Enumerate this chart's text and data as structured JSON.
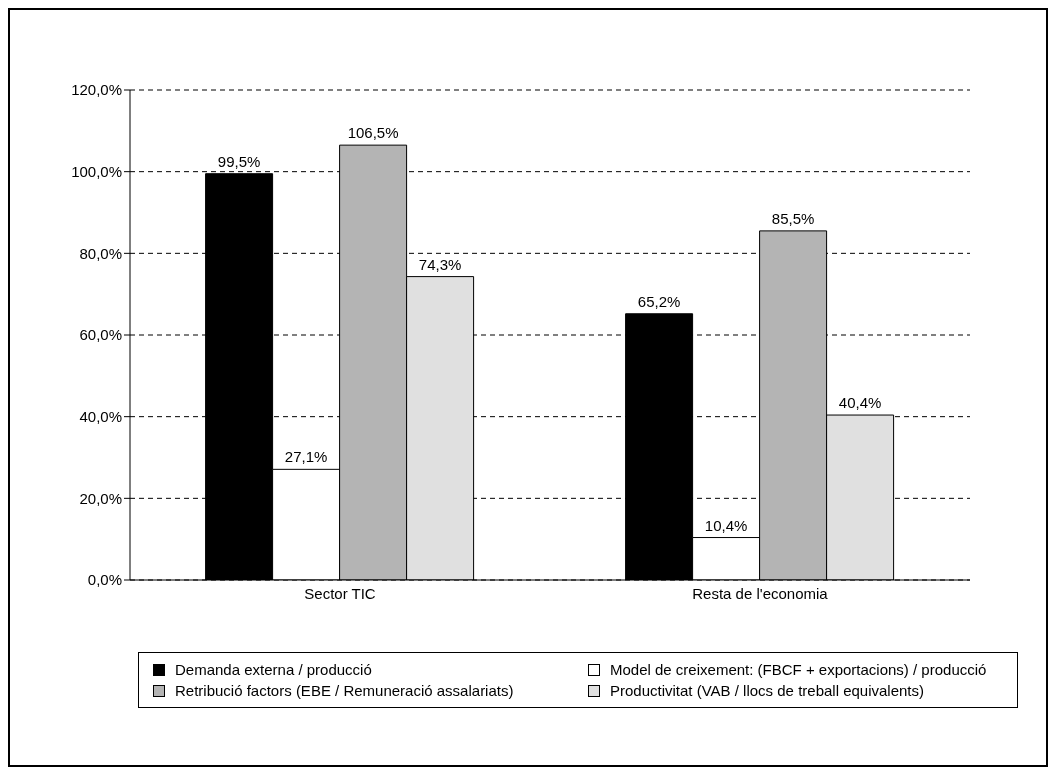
{
  "chart_data": {
    "type": "bar",
    "categories": [
      "Sector TIC",
      "Resta de l'economia"
    ],
    "series": [
      {
        "name": "Demanda externa / producció",
        "color": "#000000",
        "values": [
          99.5,
          65.2
        ],
        "value_labels": [
          "99,5%",
          "65,2%"
        ]
      },
      {
        "name": "Model de creixement: (FBCF + exportacions) / producció",
        "color": "#ffffff",
        "values": [
          27.1,
          10.4
        ],
        "value_labels": [
          "27,1%",
          "10,4%"
        ]
      },
      {
        "name": "Retribució factors (EBE / Remuneració assalariats)",
        "color": "#b4b4b4",
        "values": [
          106.5,
          85.5
        ],
        "value_labels": [
          "106,5%",
          "85,5%"
        ]
      },
      {
        "name": "Productivitat (VAB / llocs de treball equivalents)",
        "color": "#e0e0e0",
        "values": [
          74.3,
          40.4
        ],
        "value_labels": [
          "74,3%",
          "40,4%"
        ]
      }
    ],
    "ylim": [
      0,
      120
    ],
    "yticks": [
      {
        "value": 0,
        "label": "0,0%"
      },
      {
        "value": 20,
        "label": "20,0%"
      },
      {
        "value": 40,
        "label": "40,0%"
      },
      {
        "value": 60,
        "label": "60,0%"
      },
      {
        "value": 80,
        "label": "80,0%"
      },
      {
        "value": 100,
        "label": "100,0%"
      },
      {
        "value": 120,
        "label": "120,0%"
      }
    ],
    "grid": "y",
    "legend": "bottom"
  }
}
